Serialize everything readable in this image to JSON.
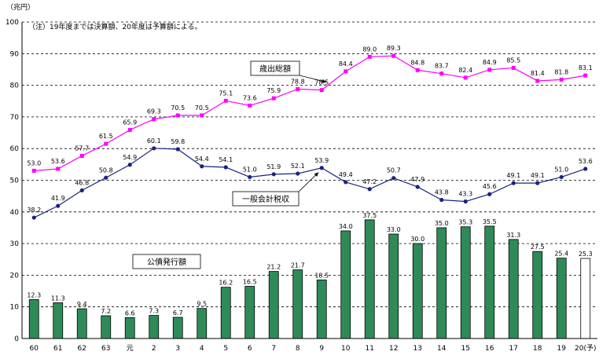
{
  "chart_data": {
    "type": "bar+line",
    "unit_label": "（兆円）",
    "note": "（注）19年度までは決算額、20年度は予算額による。",
    "categories": [
      "60",
      "61",
      "62",
      "63",
      "元",
      "2",
      "3",
      "4",
      "5",
      "6",
      "7",
      "8",
      "9",
      "10",
      "11",
      "12",
      "13",
      "14",
      "15",
      "16",
      "17",
      "18",
      "19",
      "20(予)"
    ],
    "ylim": [
      0,
      100
    ],
    "yticks": [
      0,
      10,
      20,
      30,
      40,
      50,
      60,
      70,
      80,
      90,
      100
    ],
    "grid": "dashed horizontal",
    "series": [
      {
        "name": "歳出総額",
        "kind": "line",
        "color": "#ff00ff",
        "marker": "square",
        "values": [
          53.0,
          53.6,
          57.7,
          61.5,
          65.9,
          69.3,
          70.5,
          70.5,
          75.1,
          73.6,
          75.9,
          78.8,
          78.5,
          84.4,
          89.0,
          89.3,
          84.8,
          83.7,
          82.4,
          84.9,
          85.5,
          81.4,
          81.8,
          83.1
        ],
        "labels": [
          "53.0",
          "53.6",
          "57.7",
          "61.5",
          "65.9",
          "69.3",
          "70.5",
          "70.5",
          "75.1",
          "73.6",
          "75.9",
          "78.8",
          "78.5",
          "84.4",
          "89.0",
          "89.3",
          "84.8",
          "83.7",
          "82.4",
          "84.9",
          "85.5",
          "81.4",
          "81.8",
          "83.1"
        ]
      },
      {
        "name": "一般会計税収",
        "kind": "line",
        "color": "#1a237e",
        "marker": "circle",
        "values": [
          38.2,
          41.9,
          46.8,
          50.8,
          54.9,
          60.1,
          59.8,
          54.4,
          54.1,
          51.0,
          51.9,
          52.1,
          53.9,
          49.4,
          47.2,
          50.7,
          47.9,
          43.8,
          43.3,
          45.6,
          49.1,
          49.1,
          51.0,
          53.6
        ],
        "labels": [
          "38.2",
          "41.9",
          "46.8",
          "50.8",
          "54.9",
          "60.1",
          "59.8",
          "54.4",
          "54.1",
          "51.0",
          "51.9",
          "52.1",
          "53.9",
          "49.4",
          "47.2",
          "50.7",
          "47.9",
          "43.8",
          "43.3",
          "45.6",
          "49.1",
          "49.1",
          "51.0",
          "53.6"
        ]
      },
      {
        "name": "公債発行額",
        "kind": "bar",
        "color": "#2e8b57",
        "last_bar_color": "#ffffff",
        "values": [
          12.3,
          11.3,
          9.4,
          7.2,
          6.6,
          7.3,
          6.7,
          9.5,
          16.2,
          16.5,
          21.2,
          21.7,
          18.5,
          34.0,
          37.5,
          33.0,
          30.0,
          35.0,
          35.3,
          35.5,
          31.3,
          27.5,
          25.4,
          25.3
        ],
        "labels": [
          "12.3",
          "11.3",
          "9.4",
          "7.2",
          "6.6",
          "7.3",
          "6.7",
          "9.5",
          "16.2",
          "16.5",
          "21.2",
          "21.7",
          "18.5",
          "34.0",
          "37.5",
          "33.0",
          "30.0",
          "35.0",
          "35.3",
          "35.5",
          "31.3",
          "27.5",
          "25.4",
          "25.3"
        ]
      }
    ]
  }
}
